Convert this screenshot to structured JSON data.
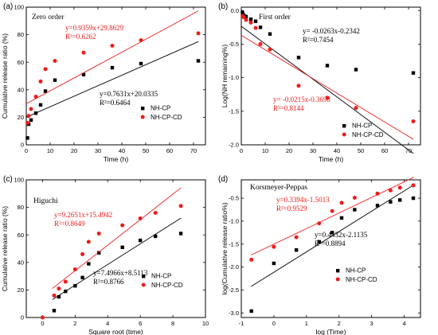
{
  "colors": {
    "nh_cp": "#000000",
    "nh_cp_cd": "#ee1c1c"
  },
  "chart_data": [
    {
      "type": "scatter",
      "panel": "(a)",
      "title": "Zero order",
      "xlabel": "Time (h)",
      "ylabel": "Cumulative release ratio (%)",
      "xlim": [
        0,
        75
      ],
      "ylim": [
        0,
        100
      ],
      "xticks": [
        0,
        10,
        20,
        30,
        40,
        50,
        60,
        70
      ],
      "yticks": [
        0,
        20,
        40,
        60,
        80,
        100
      ],
      "legend": "bottom-right",
      "series": [
        {
          "name": "NH-CP",
          "marker": "square",
          "color": "#000000",
          "x": [
            0.5,
            1,
            2,
            4,
            6,
            8,
            12,
            24,
            36,
            48,
            72
          ],
          "y": [
            5,
            15,
            18,
            23,
            29,
            39,
            47,
            51,
            56,
            59,
            61
          ],
          "fit": {
            "slope": 0.7631,
            "intercept": 20.0335,
            "x_range": [
              0,
              72
            ],
            "equation": "y=0.7631x+20.0335",
            "r2": "R²=0.6464"
          }
        },
        {
          "name": "NH-CP-CD",
          "marker": "circle",
          "color": "#ee1c1c",
          "x": [
            0.5,
            1,
            2,
            4,
            6,
            8,
            12,
            24,
            36,
            48,
            72
          ],
          "y": [
            16,
            21,
            26,
            35,
            46,
            55,
            61,
            67,
            72,
            76,
            81
          ],
          "fit": {
            "slope": 0.9359,
            "intercept": 29.8629,
            "x_range": [
              0,
              72
            ],
            "equation": "y=0.9359x+29.8629",
            "r2": "R²=0.6262"
          }
        }
      ]
    },
    {
      "type": "scatter",
      "panel": "(b)",
      "title": "First order",
      "xlabel": "Time (h)",
      "ylabel": "Log(NH remaining%)",
      "xlim": [
        0,
        75
      ],
      "ylim": [
        -2.0,
        0.05
      ],
      "xticks": [
        0,
        10,
        20,
        30,
        40,
        50,
        60,
        70
      ],
      "yticks": [
        0.0,
        -0.5,
        -1.0,
        -1.5,
        -2.0
      ],
      "legend": "bottom-right",
      "series": [
        {
          "name": "NH-CP",
          "marker": "square",
          "color": "#000000",
          "x": [
            0.5,
            1,
            2,
            4,
            6,
            8,
            12,
            24,
            36,
            48,
            72
          ],
          "y": [
            -0.03,
            -0.07,
            -0.09,
            -0.13,
            -0.16,
            -0.25,
            -0.35,
            -0.7,
            -0.82,
            -0.88,
            -0.93
          ],
          "fit": {
            "slope": -0.0263,
            "intercept": -0.2342,
            "x_range": [
              0,
              72
            ],
            "equation": "y= -0.0263x-0.2342",
            "r2": "R²=0.7454"
          }
        },
        {
          "name": "NH-CP-CD",
          "marker": "circle",
          "color": "#ee1c1c",
          "x": [
            0.5,
            1,
            2,
            4,
            6,
            8,
            12,
            24,
            36,
            48,
            72
          ],
          "y": [
            -0.08,
            -0.1,
            -0.14,
            -0.18,
            -0.26,
            -0.5,
            -0.58,
            -1.12,
            -1.3,
            -1.45,
            -1.65
          ],
          "fit": {
            "slope": -0.0215,
            "intercept": -0.3698,
            "x_range": [
              0,
              72
            ],
            "equation": "y= -0.0215x-0.3698",
            "r2": "R²=0.8144"
          }
        }
      ]
    },
    {
      "type": "scatter",
      "panel": "(c)",
      "title": "Higuchi",
      "xlabel": "Square root (time)",
      "ylabel": "Cumulative release ratio (%)",
      "xlim": [
        -1,
        10
      ],
      "ylim": [
        0,
        100
      ],
      "xticks": [
        0,
        2,
        4,
        6,
        8,
        10
      ],
      "yticks": [
        0,
        20,
        40,
        60,
        80,
        100
      ],
      "legend": "bottom-right",
      "series": [
        {
          "name": "NH-CP",
          "marker": "square",
          "color": "#000000",
          "x": [
            0.71,
            1,
            1.41,
            2,
            2.45,
            2.83,
            3.46,
            4.9,
            6,
            6.93,
            8.49
          ],
          "y": [
            5,
            15,
            19,
            23,
            29,
            39,
            47,
            51,
            56,
            59,
            61
          ],
          "fit": {
            "slope": 7.4966,
            "intercept": 8.5113,
            "x_range": [
              0.6,
              8.5
            ],
            "equation": "y=7.4966x+8.5113",
            "r2": "R²=0.8766"
          }
        },
        {
          "name": "NH-CP-CD",
          "marker": "circle",
          "color": "#ee1c1c",
          "x": [
            0,
            0.71,
            1,
            1.41,
            2,
            2.45,
            2.83,
            3.46,
            4.9,
            6,
            6.93,
            8.49
          ],
          "y": [
            0,
            16,
            21,
            26,
            35,
            46,
            55,
            61,
            67,
            72,
            76,
            81
          ],
          "fit": {
            "slope": 9.2651,
            "intercept": 15.4942,
            "x_range": [
              0.6,
              8.5
            ],
            "equation": "y=9.2651x+15.4942",
            "r2": "R²=0.8649"
          }
        }
      ]
    },
    {
      "type": "scatter",
      "panel": "(d)",
      "title": "Korsmeyer-Peppas",
      "xlabel": "log (Time)",
      "ylabel": "log(Cumulative release ratio%)",
      "xlim": [
        -1,
        4.5
      ],
      "ylim": [
        -3.1,
        -0.1
      ],
      "xticks": [
        -1,
        0,
        1,
        2,
        3,
        4
      ],
      "yticks": [
        -3.0,
        -2.5,
        -2.0,
        -1.5,
        -1.0,
        -0.5
      ],
      "legend": "bottom-right",
      "series": [
        {
          "name": "NH-CP",
          "marker": "square",
          "color": "#000000",
          "x": [
            -0.69,
            0,
            0.69,
            1.39,
            1.79,
            2.08,
            2.48,
            3.18,
            3.58,
            3.87,
            4.28
          ],
          "y": [
            -2.96,
            -1.92,
            -1.63,
            -1.45,
            -1.25,
            -0.93,
            -0.75,
            -0.66,
            -0.58,
            -0.54,
            -0.5
          ],
          "fit": {
            "slope": 0.4432,
            "intercept": -2.1135,
            "x_range": [
              -0.7,
              4.3
            ],
            "equation": "y=0.4432x-2.1135",
            "r2": "R²=0.8894"
          }
        },
        {
          "name": "NH-CP-CD",
          "marker": "circle",
          "color": "#ee1c1c",
          "x": [
            -0.69,
            0,
            0.69,
            1.39,
            1.79,
            2.08,
            2.48,
            3.18,
            3.58,
            3.87,
            4.28
          ],
          "y": [
            -1.84,
            -1.56,
            -1.35,
            -1.05,
            -0.78,
            -0.6,
            -0.49,
            -0.4,
            -0.33,
            -0.27,
            -0.22
          ],
          "fit": {
            "slope": 0.3394,
            "intercept": -1.5013,
            "x_range": [
              -0.7,
              4.3
            ],
            "equation": "y=0.3394x-1.5013",
            "r2": "R²=0.9529"
          }
        }
      ]
    }
  ],
  "legend_labels": [
    "NH-CP",
    "NH-CP-CD"
  ]
}
